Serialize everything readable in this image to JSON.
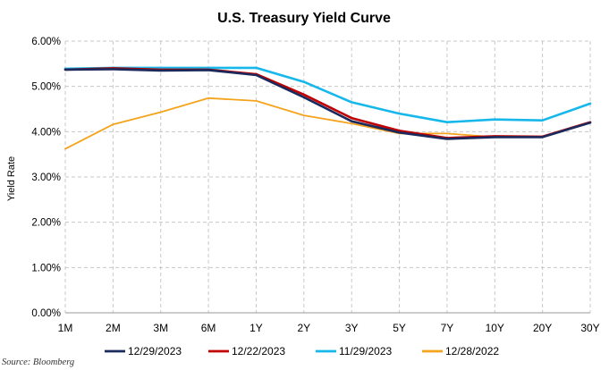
{
  "chart_data": {
    "type": "line",
    "title": "U.S. Treasury Yield Curve",
    "ylabel": "Yield Rate",
    "xlabel": "",
    "categories": [
      "1M",
      "2M",
      "3M",
      "6M",
      "1Y",
      "2Y",
      "3Y",
      "5Y",
      "7Y",
      "10Y",
      "20Y",
      "30Y"
    ],
    "ylim": [
      0,
      6
    ],
    "yticks": [
      0,
      1,
      2,
      3,
      4,
      5,
      6
    ],
    "ytick_labels": [
      "0.00%",
      "1.00%",
      "2.00%",
      "3.00%",
      "4.00%",
      "5.00%",
      "6.00%"
    ],
    "grid": true,
    "legend_position": "bottom",
    "series": [
      {
        "name": "12/29/2023",
        "color": "#1b2a5c",
        "values": [
          5.37,
          5.38,
          5.35,
          5.36,
          5.25,
          4.76,
          4.23,
          3.98,
          3.84,
          3.88,
          3.88,
          4.2
        ]
      },
      {
        "name": "12/22/2023",
        "color": "#c00000",
        "values": [
          5.37,
          5.4,
          5.37,
          5.37,
          5.27,
          4.82,
          4.3,
          4.02,
          3.86,
          3.9,
          3.89,
          4.21
        ]
      },
      {
        "name": "11/29/2023",
        "color": "#16b7ea",
        "values": [
          5.39,
          5.41,
          5.41,
          5.41,
          5.41,
          5.1,
          4.65,
          4.4,
          4.21,
          4.27,
          4.25,
          4.62
        ]
      },
      {
        "name": "12/28/2022",
        "color": "#f5a31c",
        "values": [
          3.62,
          4.16,
          4.43,
          4.74,
          4.68,
          4.36,
          4.18,
          3.96,
          3.96,
          3.88,
          null,
          null
        ]
      }
    ]
  },
  "source": "Source: Bloomberg"
}
